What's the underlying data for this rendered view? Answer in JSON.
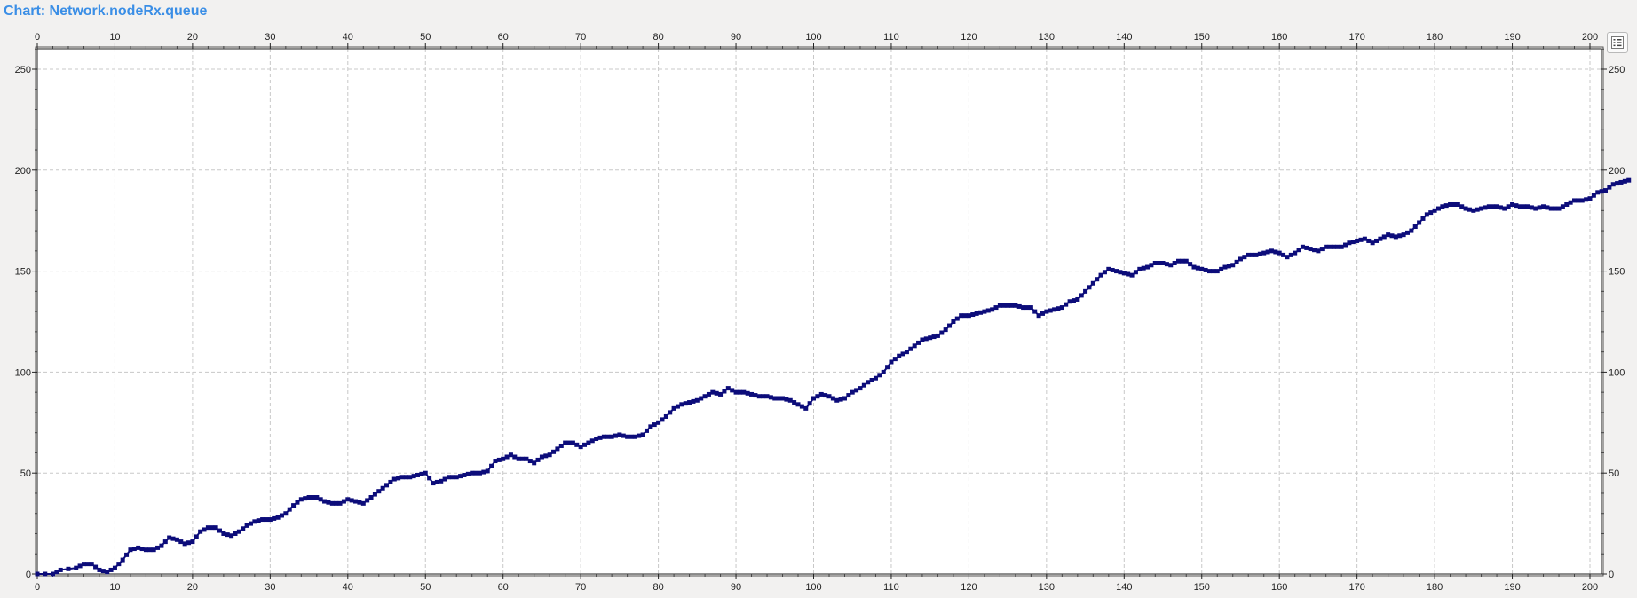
{
  "header": {
    "title": "Chart:  Network.nodeRx.queue"
  },
  "legend_button": {
    "icon": "legend-list-icon"
  },
  "colors": {
    "series": "#0c0c7a",
    "grid": "#c8c8c8",
    "plot_bg": "#ffffff"
  },
  "chart_data": {
    "type": "line",
    "title": "Chart:  Network.nodeRx.queue",
    "xlabel": "",
    "ylabel": "",
    "xlim": [
      0,
      200
    ],
    "ylim": [
      0,
      260
    ],
    "x_ticks": [
      0,
      10,
      20,
      30,
      40,
      50,
      60,
      70,
      80,
      90,
      100,
      110,
      120,
      130,
      140,
      150,
      160,
      170,
      180,
      190,
      200
    ],
    "y_ticks": [
      0,
      50,
      100,
      150,
      200,
      250
    ],
    "grid": true,
    "markers": true,
    "series": [
      {
        "name": "",
        "points": [
          [
            0,
            0
          ],
          [
            2,
            0
          ],
          [
            3,
            2
          ],
          [
            5,
            3
          ],
          [
            6,
            5
          ],
          [
            7,
            5
          ],
          [
            8,
            2
          ],
          [
            9,
            1
          ],
          [
            10,
            3
          ],
          [
            11,
            7
          ],
          [
            12,
            12
          ],
          [
            13,
            13
          ],
          [
            14,
            12
          ],
          [
            15,
            12
          ],
          [
            16,
            14
          ],
          [
            17,
            18
          ],
          [
            18,
            17
          ],
          [
            19,
            15
          ],
          [
            20,
            16
          ],
          [
            21,
            21
          ],
          [
            22,
            23
          ],
          [
            23,
            23
          ],
          [
            24,
            20
          ],
          [
            25,
            19
          ],
          [
            26,
            21
          ],
          [
            27,
            24
          ],
          [
            28,
            26
          ],
          [
            29,
            27
          ],
          [
            30,
            27
          ],
          [
            31,
            28
          ],
          [
            32,
            30
          ],
          [
            33,
            34
          ],
          [
            34,
            37
          ],
          [
            35,
            38
          ],
          [
            36,
            38
          ],
          [
            37,
            36
          ],
          [
            38,
            35
          ],
          [
            39,
            35
          ],
          [
            40,
            37
          ],
          [
            41,
            36
          ],
          [
            42,
            35
          ],
          [
            43,
            38
          ],
          [
            44,
            41
          ],
          [
            45,
            44
          ],
          [
            46,
            47
          ],
          [
            47,
            48
          ],
          [
            48,
            48
          ],
          [
            49,
            49
          ],
          [
            50,
            50
          ],
          [
            51,
            45
          ],
          [
            52,
            46
          ],
          [
            53,
            48
          ],
          [
            54,
            48
          ],
          [
            55,
            49
          ],
          [
            56,
            50
          ],
          [
            57,
            50
          ],
          [
            58,
            51
          ],
          [
            59,
            56
          ],
          [
            60,
            57
          ],
          [
            61,
            59
          ],
          [
            62,
            57
          ],
          [
            63,
            57
          ],
          [
            64,
            55
          ],
          [
            65,
            58
          ],
          [
            66,
            59
          ],
          [
            67,
            62
          ],
          [
            68,
            65
          ],
          [
            69,
            65
          ],
          [
            70,
            63
          ],
          [
            71,
            65
          ],
          [
            72,
            67
          ],
          [
            73,
            68
          ],
          [
            74,
            68
          ],
          [
            75,
            69
          ],
          [
            76,
            68
          ],
          [
            77,
            68
          ],
          [
            78,
            69
          ],
          [
            79,
            73
          ],
          [
            80,
            75
          ],
          [
            81,
            78
          ],
          [
            82,
            82
          ],
          [
            83,
            84
          ],
          [
            84,
            85
          ],
          [
            85,
            86
          ],
          [
            86,
            88
          ],
          [
            87,
            90
          ],
          [
            88,
            89
          ],
          [
            89,
            92
          ],
          [
            90,
            90
          ],
          [
            91,
            90
          ],
          [
            92,
            89
          ],
          [
            93,
            88
          ],
          [
            94,
            88
          ],
          [
            95,
            87
          ],
          [
            96,
            87
          ],
          [
            97,
            86
          ],
          [
            98,
            84
          ],
          [
            99,
            82
          ],
          [
            100,
            87
          ],
          [
            101,
            89
          ],
          [
            102,
            88
          ],
          [
            103,
            86
          ],
          [
            104,
            87
          ],
          [
            105,
            90
          ],
          [
            106,
            92
          ],
          [
            107,
            95
          ],
          [
            108,
            97
          ],
          [
            109,
            100
          ],
          [
            110,
            105
          ],
          [
            111,
            108
          ],
          [
            112,
            110
          ],
          [
            113,
            113
          ],
          [
            114,
            116
          ],
          [
            115,
            117
          ],
          [
            116,
            118
          ],
          [
            117,
            121
          ],
          [
            118,
            125
          ],
          [
            119,
            128
          ],
          [
            120,
            128
          ],
          [
            121,
            129
          ],
          [
            122,
            130
          ],
          [
            123,
            131
          ],
          [
            124,
            133
          ],
          [
            125,
            133
          ],
          [
            126,
            133
          ],
          [
            127,
            132
          ],
          [
            128,
            132
          ],
          [
            129,
            128
          ],
          [
            130,
            130
          ],
          [
            131,
            131
          ],
          [
            132,
            132
          ],
          [
            133,
            135
          ],
          [
            134,
            136
          ],
          [
            135,
            140
          ],
          [
            136,
            144
          ],
          [
            137,
            148
          ],
          [
            138,
            151
          ],
          [
            139,
            150
          ],
          [
            140,
            149
          ],
          [
            141,
            148
          ],
          [
            142,
            151
          ],
          [
            143,
            152
          ],
          [
            144,
            154
          ],
          [
            145,
            154
          ],
          [
            146,
            153
          ],
          [
            147,
            155
          ],
          [
            148,
            155
          ],
          [
            149,
            152
          ],
          [
            150,
            151
          ],
          [
            151,
            150
          ],
          [
            152,
            150
          ],
          [
            153,
            152
          ],
          [
            154,
            153
          ],
          [
            155,
            156
          ],
          [
            156,
            158
          ],
          [
            157,
            158
          ],
          [
            158,
            159
          ],
          [
            159,
            160
          ],
          [
            160,
            159
          ],
          [
            161,
            157
          ],
          [
            162,
            159
          ],
          [
            163,
            162
          ],
          [
            164,
            161
          ],
          [
            165,
            160
          ],
          [
            166,
            162
          ],
          [
            167,
            162
          ],
          [
            168,
            162
          ],
          [
            169,
            164
          ],
          [
            170,
            165
          ],
          [
            171,
            166
          ],
          [
            172,
            164
          ],
          [
            173,
            166
          ],
          [
            174,
            168
          ],
          [
            175,
            167
          ],
          [
            176,
            168
          ],
          [
            177,
            170
          ],
          [
            178,
            174
          ],
          [
            179,
            178
          ],
          [
            180,
            180
          ],
          [
            181,
            182
          ],
          [
            182,
            183
          ],
          [
            183,
            183
          ],
          [
            184,
            181
          ],
          [
            185,
            180
          ],
          [
            186,
            181
          ],
          [
            187,
            182
          ],
          [
            188,
            182
          ],
          [
            189,
            181
          ],
          [
            190,
            183
          ],
          [
            191,
            182
          ],
          [
            192,
            182
          ],
          [
            193,
            181
          ],
          [
            194,
            182
          ],
          [
            195,
            181
          ],
          [
            196,
            181
          ],
          [
            197,
            183
          ],
          [
            198,
            185
          ],
          [
            199,
            185
          ],
          [
            200,
            186
          ],
          [
            201,
            189
          ],
          [
            202,
            190
          ],
          [
            203,
            193
          ],
          [
            204,
            194
          ],
          [
            205,
            195
          ]
        ]
      }
    ]
  }
}
